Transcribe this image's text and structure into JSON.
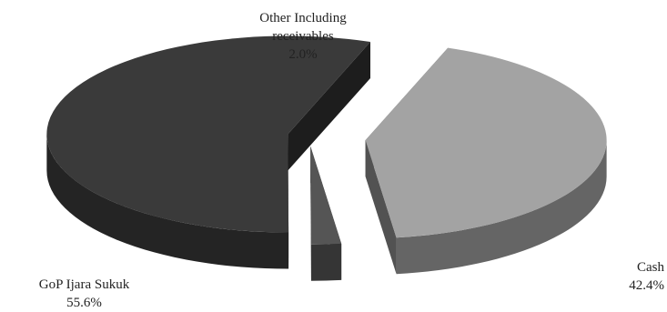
{
  "chart_data": {
    "type": "pie",
    "title": "",
    "three_d": true,
    "exploded": true,
    "legend": "none",
    "slices": [
      {
        "label": "Cash",
        "value": 42.4,
        "value_text": "42.4%",
        "color": "#a3a3a3"
      },
      {
        "label": "Other Including receivables",
        "label_lines": [
          "Other Including",
          "receivables"
        ],
        "value": 2.0,
        "value_text": "2.0%",
        "color": "#555555"
      },
      {
        "label": "GoP Ijara Sukuk",
        "value": 55.6,
        "value_text": "55.6%",
        "color": "#3a3a3a"
      }
    ]
  }
}
